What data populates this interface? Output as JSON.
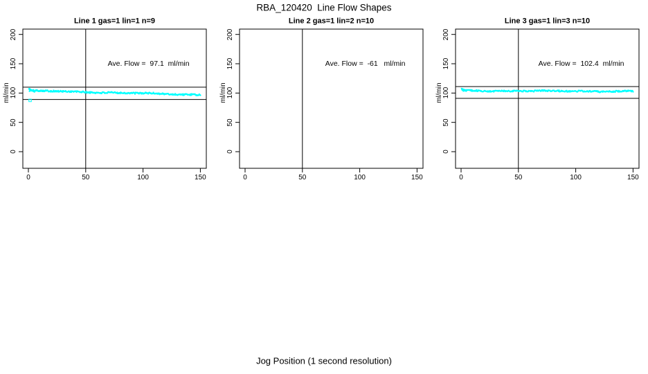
{
  "figure": {
    "title": "RBA_120420  Line Flow Shapes",
    "xlabel": "Jog Position (1 second resolution)"
  },
  "colors": {
    "points": "#00FFFF",
    "axis": "#000000",
    "background": "#FFFFFF"
  },
  "chart_data": [
    {
      "type": "scatter",
      "panel": 1,
      "title": "Line 1 gas=1 lin=1 n=9",
      "ylabel": "ml/min",
      "annotation": "Ave. Flow =  97.1  ml/min",
      "ave_flow_ml_min": 97.1,
      "x_ticks": [
        0,
        50,
        100,
        150
      ],
      "y_ticks": [
        0,
        50,
        100,
        150,
        200
      ],
      "vline_x": 50,
      "ref_lines": [
        110,
        89
      ],
      "series": {
        "name": "flow",
        "color": "#00FFFF",
        "marker": "dot",
        "band": {
          "x_start": 1,
          "x_end": 150,
          "x_step": 0.5,
          "y_start": 104,
          "y_end": 97,
          "noise": 1.3
        },
        "start_cluster": {
          "x_start": 0.5,
          "x_end": 5.5,
          "x_step": 0.25,
          "y_start": 107,
          "y_end": 102.5,
          "noise": 0.9
        },
        "outliers": [
          {
            "x": 1.5,
            "y": 87.5,
            "marker": "open-square"
          }
        ]
      }
    },
    {
      "type": "scatter",
      "panel": 2,
      "title": "Line 2 gas=1 lin=2 n=10",
      "ylabel": "ml/min",
      "annotation": "Ave. Flow =  -61   ml/min",
      "ave_flow_ml_min": -61,
      "x_ticks": [
        0,
        50,
        100,
        150
      ],
      "y_ticks": [
        0,
        50,
        100,
        150,
        200
      ],
      "vline_x": 50,
      "ref_lines": [],
      "series": null
    },
    {
      "type": "scatter",
      "panel": 3,
      "title": "Line 3 gas=1 lin=3 n=10",
      "ylabel": "ml/min",
      "annotation": "Ave. Flow =  102.4  ml/min",
      "ave_flow_ml_min": 102.4,
      "x_ticks": [
        0,
        50,
        100,
        150
      ],
      "y_ticks": [
        0,
        50,
        100,
        150,
        200
      ],
      "vline_x": 50,
      "ref_lines": [
        111,
        91
      ],
      "series": {
        "name": "flow",
        "color": "#00FFFF",
        "marker": "dot",
        "band": {
          "x_start": 1,
          "x_end": 150,
          "x_step": 0.5,
          "y_start": 103.9,
          "y_end": 102.8,
          "noise": 1.2
        },
        "start_cluster": {
          "x_start": 0.5,
          "x_end": 4.5,
          "x_step": 0.25,
          "y_start": 107,
          "y_end": 103.5,
          "noise": 0.8
        },
        "outliers": []
      }
    }
  ]
}
